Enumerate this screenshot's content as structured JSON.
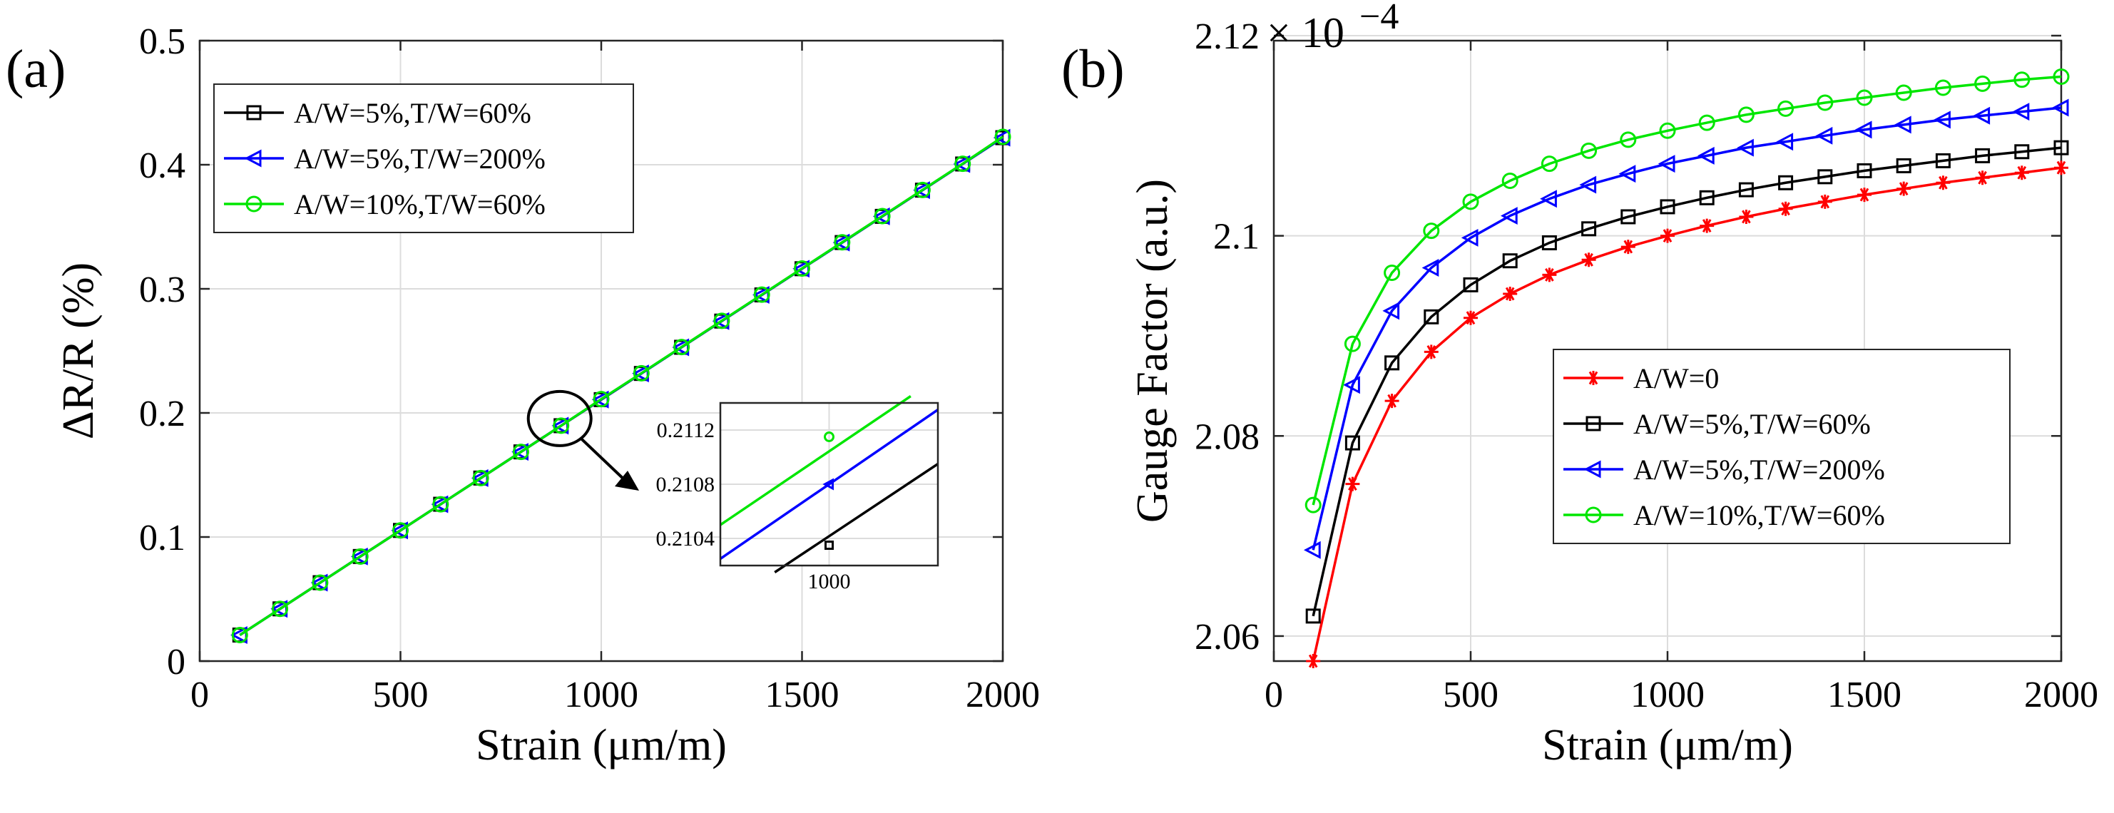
{
  "panel_labels": [
    "(a)",
    "(b)"
  ],
  "inset_ticks": {
    "y": [
      "0.2112",
      "0.2108",
      "0.2104"
    ],
    "x": [
      "1000"
    ]
  },
  "chart_data": [
    {
      "type": "line",
      "xlabel": "Strain (μm/m)",
      "ylabel": "ΔR/R (%)",
      "xlim": [
        0,
        2000
      ],
      "ylim": [
        0,
        0.5
      ],
      "xticks": [
        0,
        500,
        1000,
        1500,
        2000
      ],
      "yticks": [
        0,
        0.1,
        0.2,
        0.3,
        0.4,
        0.5
      ],
      "xtick_labels": [
        "0",
        "500",
        "1000",
        "1500",
        "2000"
      ],
      "ytick_labels": [
        "0",
        "0.1",
        "0.2",
        "0.3",
        "0.4",
        "0.5"
      ],
      "grid": true,
      "legend_position": "top-left",
      "x": [
        100,
        200,
        300,
        400,
        500,
        600,
        700,
        800,
        900,
        1000,
        1100,
        1200,
        1300,
        1400,
        1500,
        1600,
        1700,
        1800,
        1900,
        2000
      ],
      "series": [
        {
          "name": "A/W=5%,T/W=60%",
          "color": "#000000",
          "marker": "square",
          "values": [
            0.021,
            0.0421,
            0.0632,
            0.0843,
            0.1053,
            0.1264,
            0.1475,
            0.1686,
            0.1897,
            0.2107,
            0.2318,
            0.2529,
            0.274,
            0.2951,
            0.3162,
            0.3373,
            0.3584,
            0.3795,
            0.4006,
            0.4218
          ]
        },
        {
          "name": "A/W=5%,T/W=200%",
          "color": "#0000ff",
          "marker": "triangle-left",
          "values": [
            0.021,
            0.0421,
            0.0632,
            0.0843,
            0.1053,
            0.1264,
            0.1475,
            0.1686,
            0.1897,
            0.2108,
            0.2318,
            0.2529,
            0.274,
            0.2951,
            0.3162,
            0.3373,
            0.3584,
            0.3795,
            0.4006,
            0.4218
          ]
        },
        {
          "name": "A/W=10%,T/W=60%",
          "color": "#00e600",
          "marker": "circle",
          "values": [
            0.021,
            0.0421,
            0.0632,
            0.0843,
            0.1053,
            0.1264,
            0.1475,
            0.1686,
            0.1897,
            0.2111,
            0.232,
            0.2531,
            0.2742,
            0.2953,
            0.3164,
            0.3375,
            0.3586,
            0.3797,
            0.4008,
            0.4225
          ]
        }
      ],
      "inset": {
        "xlim": [
          960,
          1040
        ],
        "ylim": [
          0.2102,
          0.2114
        ],
        "points": [
          {
            "series": "A/W=5%,T/W=60%",
            "x": 1000,
            "y": 0.21035
          },
          {
            "series": "A/W=5%,T/W=200%",
            "x": 1000,
            "y": 0.2108
          },
          {
            "series": "A/W=10%,T/W=60%",
            "x": 1000,
            "y": 0.21115
          }
        ],
        "lines": [
          {
            "series": "A/W=5%,T/W=60%",
            "x": [
              980,
              1040
            ],
            "y": [
              0.21015,
              0.21095
            ]
          },
          {
            "series": "A/W=5%,T/W=200%",
            "x": [
              960,
              1040
            ],
            "y": [
              0.21025,
              0.21135
            ]
          },
          {
            "series": "A/W=10%,T/W=60%",
            "x": [
              960,
              1030
            ],
            "y": [
              0.2105,
              0.21145
            ]
          }
        ]
      }
    },
    {
      "type": "line",
      "xlabel": "Strain (μm/m)",
      "ylabel": "Gauge Factor (a.u.)",
      "exponent_label": "× 10",
      "exponent_power": "−4",
      "xlim": [
        0,
        2000
      ],
      "ylim": [
        2.0575,
        2.1195
      ],
      "xticks": [
        0,
        500,
        1000,
        1500,
        2000
      ],
      "yticks": [
        2.06,
        2.08,
        2.1,
        2.12
      ],
      "xtick_labels": [
        "0",
        "500",
        "1000",
        "1500",
        "2000"
      ],
      "ytick_labels": [
        "2.06",
        "2.08",
        "2.1",
        "2.12"
      ],
      "grid": true,
      "legend_position": "center-right",
      "x": [
        100,
        200,
        300,
        400,
        500,
        600,
        700,
        800,
        900,
        1000,
        1100,
        1200,
        1300,
        1400,
        1500,
        1600,
        1700,
        1800,
        1900,
        2000
      ],
      "series": [
        {
          "name": "A/W=0",
          "color": "#ff0000",
          "marker": "asterisk",
          "values": [
            2.0575,
            2.0752,
            2.0835,
            2.0884,
            2.0918,
            2.0942,
            2.0961,
            2.0976,
            2.0989,
            2.1,
            2.101,
            2.1019,
            2.1027,
            2.1034,
            2.1041,
            2.1047,
            2.1053,
            2.1058,
            2.1063,
            2.1068
          ]
        },
        {
          "name": "A/W=5%,T/W=60%",
          "color": "#000000",
          "marker": "square",
          "values": [
            2.062,
            2.0793,
            2.0873,
            2.0919,
            2.0951,
            2.0975,
            2.0993,
            2.1007,
            2.1019,
            2.1029,
            2.1038,
            2.1046,
            2.1053,
            2.1059,
            2.1065,
            2.107,
            2.1075,
            2.108,
            2.1084,
            2.1088
          ]
        },
        {
          "name": "A/W=5%,T/W=200%",
          "color": "#0000ff",
          "marker": "triangle-left",
          "values": [
            2.0686,
            2.0851,
            2.0925,
            2.0968,
            2.0998,
            2.102,
            2.1037,
            2.1051,
            2.1062,
            2.1072,
            2.108,
            2.1088,
            2.1094,
            2.11,
            2.1106,
            2.1111,
            2.1116,
            2.112,
            2.1124,
            2.1128
          ]
        },
        {
          "name": "A/W=10%,T/W=60%",
          "color": "#00e600",
          "marker": "circle",
          "values": [
            2.0731,
            2.0892,
            2.0963,
            2.1005,
            2.1034,
            2.1055,
            2.1072,
            2.1085,
            2.1096,
            2.1105,
            2.1113,
            2.1121,
            2.1127,
            2.1133,
            2.1138,
            2.1143,
            2.1148,
            2.1152,
            2.1156,
            2.1159
          ]
        }
      ]
    }
  ]
}
